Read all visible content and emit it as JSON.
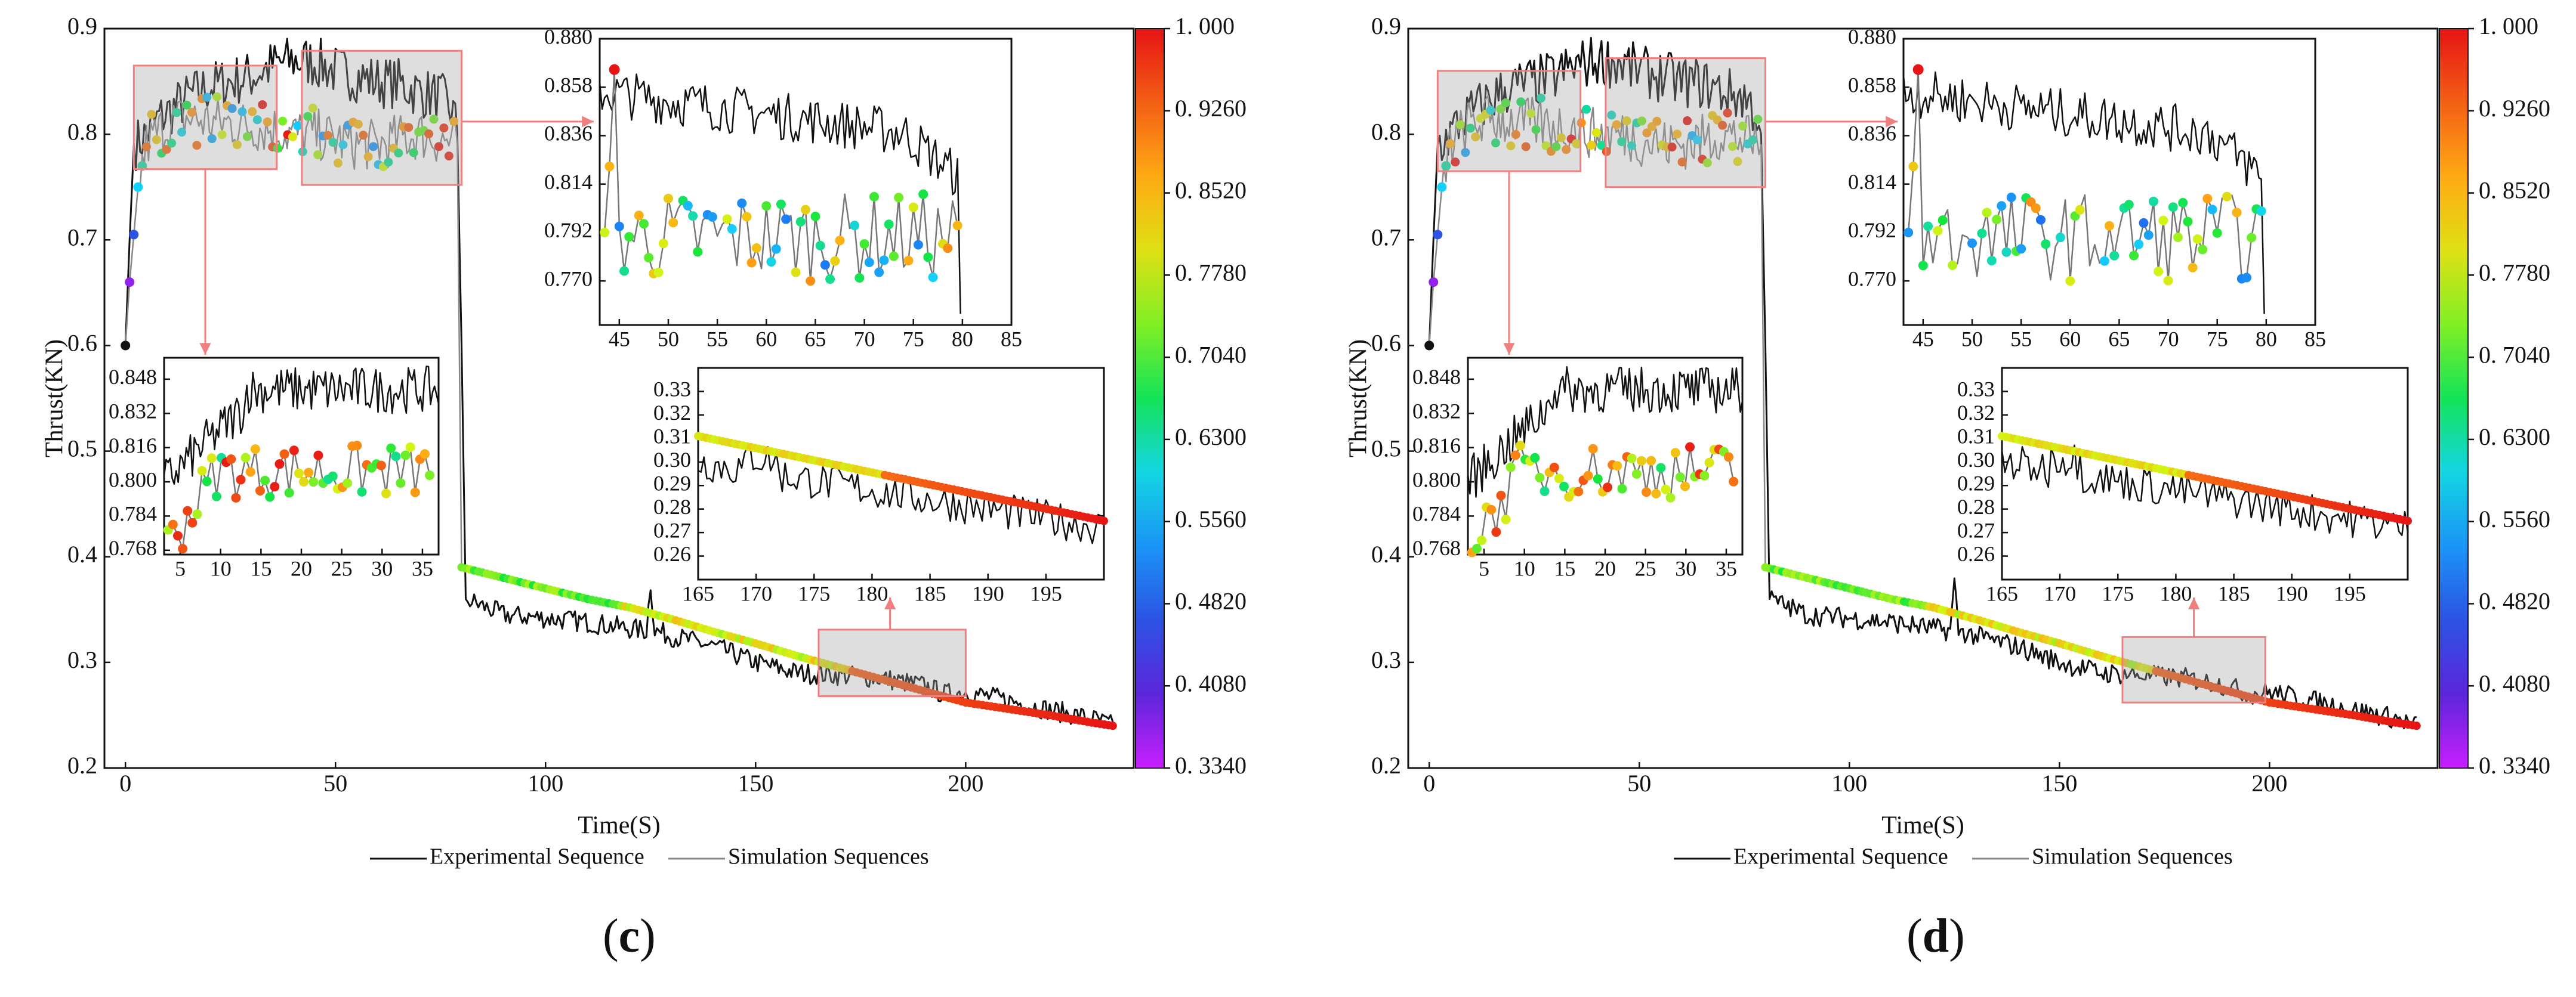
{
  "panels": [
    {
      "label": "c",
      "main": {
        "xlabel": "Time(S)",
        "ylabel": "Thrust(KN)",
        "xlim": [
          -5,
          240
        ],
        "ylim": [
          0.2,
          0.9
        ],
        "xticks": [
          "0",
          "50",
          "100",
          "150",
          "200"
        ],
        "yticks": [
          "0.2",
          "0.3",
          "0.4",
          "0.5",
          "0.6",
          "0.7",
          "0.8",
          "0.9"
        ]
      },
      "colorbar": {
        "ticks": [
          "1. 000",
          "0. 9260",
          "0. 8520",
          "0. 7780",
          "0. 7040",
          "0. 6300",
          "0. 5560",
          "0. 4820",
          "0. 4080",
          "0. 3340"
        ]
      },
      "inset_top_right": {
        "xlim": [
          43,
          85
        ],
        "ylim": [
          0.75,
          0.88
        ],
        "xticks": [
          "45",
          "50",
          "55",
          "60",
          "65",
          "70",
          "75",
          "80",
          "85"
        ],
        "yticks": [
          "0.880",
          "0.858",
          "0.836",
          "0.814",
          "0.792",
          "0.770"
        ]
      },
      "inset_left": {
        "xlim": [
          3,
          37
        ],
        "ylim": [
          0.766,
          0.858
        ],
        "xticks": [
          "5",
          "10",
          "15",
          "20",
          "25",
          "30",
          "35"
        ],
        "yticks": [
          "0.848",
          "0.832",
          "0.816",
          "0.800",
          "0.784",
          "0.768"
        ]
      },
      "inset_bottom_right": {
        "xlim": [
          165,
          200
        ],
        "ylim": [
          0.25,
          0.34
        ],
        "xticks": [
          "165",
          "170",
          "175",
          "180",
          "185",
          "190",
          "195"
        ],
        "yticks": [
          "0.33",
          "0.32",
          "0.31",
          "0.30",
          "0.29",
          "0.28",
          "0.27",
          "0.26"
        ]
      },
      "legend": {
        "entries": [
          "Experimental Sequence",
          "Simulation Sequences"
        ]
      }
    },
    {
      "label": "d",
      "main": {
        "xlabel": "Time(S)",
        "ylabel": "Thrust(KN)",
        "xlim": [
          -5,
          240
        ],
        "ylim": [
          0.2,
          0.9
        ],
        "xticks": [
          "0",
          "50",
          "100",
          "150",
          "200"
        ],
        "yticks": [
          "0.2",
          "0.3",
          "0.4",
          "0.5",
          "0.6",
          "0.7",
          "0.8",
          "0.9"
        ]
      },
      "colorbar": {
        "ticks": [
          "1. 000",
          "0. 9260",
          "0. 8520",
          "0. 7780",
          "0. 7040",
          "0. 6300",
          "0. 5560",
          "0. 4820",
          "0. 4080",
          "0. 3340"
        ]
      },
      "inset_top_right": {
        "xlim": [
          43,
          85
        ],
        "ylim": [
          0.75,
          0.88
        ],
        "xticks": [
          "45",
          "50",
          "55",
          "60",
          "65",
          "70",
          "75",
          "80",
          "85"
        ],
        "yticks": [
          "0.880",
          "0.858",
          "0.836",
          "0.814",
          "0.792",
          "0.770"
        ]
      },
      "inset_left": {
        "xlim": [
          3,
          37
        ],
        "ylim": [
          0.766,
          0.858
        ],
        "xticks": [
          "5",
          "10",
          "15",
          "20",
          "25",
          "30",
          "35"
        ],
        "yticks": [
          "0.848",
          "0.832",
          "0.816",
          "0.800",
          "0.784",
          "0.768"
        ]
      },
      "inset_bottom_right": {
        "xlim": [
          165,
          200
        ],
        "ylim": [
          0.25,
          0.34
        ],
        "xticks": [
          "165",
          "170",
          "175",
          "180",
          "185",
          "190",
          "195"
        ],
        "yticks": [
          "0.33",
          "0.32",
          "0.31",
          "0.30",
          "0.29",
          "0.28",
          "0.27",
          "0.26"
        ]
      },
      "legend": {
        "entries": [
          "Experimental Sequence",
          "Simulation Sequences"
        ]
      }
    }
  ],
  "chart_data": [
    {
      "type": "line",
      "panel": "c",
      "xlabel": "Time(S)",
      "ylabel": "Thrust(KN)",
      "xlim": [
        -5,
        240
      ],
      "ylim": [
        0.2,
        0.9
      ],
      "colorbar_range": [
        0.334,
        1.0
      ],
      "legend": "bottom-center",
      "series": [
        {
          "name": "Experimental Sequence",
          "color": "#111111",
          "x": [
            0,
            1,
            2,
            3,
            5,
            8,
            10,
            15,
            20,
            25,
            30,
            35,
            40,
            45,
            50,
            55,
            60,
            65,
            70,
            75,
            78,
            79,
            80,
            81,
            90,
            100,
            110,
            120,
            124,
            125,
            126,
            130,
            140,
            150,
            160,
            170,
            180,
            190,
            195,
            200,
            210,
            220,
            230,
            235
          ],
          "y": [
            0.6,
            0.7,
            0.79,
            0.792,
            0.8,
            0.815,
            0.82,
            0.835,
            0.845,
            0.85,
            0.855,
            0.865,
            0.87,
            0.868,
            0.86,
            0.855,
            0.85,
            0.848,
            0.84,
            0.835,
            0.82,
            0.8,
            0.6,
            0.36,
            0.345,
            0.342,
            0.338,
            0.332,
            0.33,
            0.375,
            0.33,
            0.325,
            0.315,
            0.3,
            0.29,
            0.288,
            0.285,
            0.278,
            0.27,
            0.272,
            0.264,
            0.255,
            0.247,
            0.24
          ]
        },
        {
          "name": "Simulation Sequences",
          "color": "#888888",
          "x": [
            0,
            1,
            2,
            3,
            5,
            10,
            15,
            20,
            25,
            30,
            35,
            40,
            45,
            50,
            55,
            60,
            65,
            70,
            75,
            79,
            80,
            90,
            100,
            110,
            120,
            130,
            140,
            150,
            160,
            170,
            180,
            190,
            200,
            210,
            220,
            230,
            235
          ],
          "y": [
            0.6,
            0.66,
            0.705,
            0.75,
            0.79,
            0.81,
            0.815,
            0.812,
            0.81,
            0.808,
            0.805,
            0.8,
            0.8,
            0.795,
            0.79,
            0.79,
            0.795,
            0.8,
            0.795,
            0.79,
            0.39,
            0.38,
            0.37,
            0.36,
            0.352,
            0.341,
            0.329,
            0.318,
            0.306,
            0.295,
            0.284,
            0.273,
            0.262,
            0.256,
            0.25,
            0.243,
            0.24
          ]
        }
      ]
    },
    {
      "type": "line",
      "panel": "d",
      "xlabel": "Time(S)",
      "ylabel": "Thrust(KN)",
      "xlim": [
        -5,
        240
      ],
      "ylim": [
        0.2,
        0.9
      ],
      "colorbar_range": [
        0.334,
        1.0
      ],
      "legend": "bottom-center",
      "series": [
        {
          "name": "Experimental Sequence",
          "color": "#111111",
          "x": [
            0,
            1,
            2,
            3,
            5,
            8,
            10,
            15,
            20,
            25,
            30,
            35,
            40,
            45,
            50,
            55,
            60,
            65,
            70,
            75,
            78,
            79,
            80,
            81,
            90,
            100,
            110,
            120,
            124,
            125,
            126,
            130,
            140,
            150,
            160,
            170,
            180,
            190,
            195,
            200,
            210,
            220,
            230,
            235
          ],
          "y": [
            0.6,
            0.7,
            0.79,
            0.792,
            0.8,
            0.815,
            0.82,
            0.835,
            0.845,
            0.85,
            0.855,
            0.865,
            0.87,
            0.868,
            0.86,
            0.855,
            0.85,
            0.848,
            0.84,
            0.835,
            0.82,
            0.8,
            0.6,
            0.36,
            0.345,
            0.342,
            0.338,
            0.332,
            0.33,
            0.375,
            0.33,
            0.325,
            0.315,
            0.3,
            0.29,
            0.288,
            0.285,
            0.278,
            0.27,
            0.272,
            0.264,
            0.255,
            0.247,
            0.24
          ]
        },
        {
          "name": "Simulation Sequences",
          "color": "#888888",
          "x": [
            0,
            1,
            2,
            3,
            5,
            10,
            15,
            20,
            25,
            30,
            35,
            40,
            45,
            50,
            55,
            60,
            65,
            70,
            75,
            79,
            80,
            90,
            100,
            110,
            120,
            130,
            140,
            150,
            160,
            170,
            180,
            190,
            200,
            210,
            220,
            230,
            235
          ],
          "y": [
            0.6,
            0.66,
            0.705,
            0.75,
            0.79,
            0.81,
            0.815,
            0.812,
            0.81,
            0.808,
            0.805,
            0.8,
            0.8,
            0.795,
            0.79,
            0.79,
            0.795,
            0.8,
            0.795,
            0.79,
            0.39,
            0.38,
            0.37,
            0.36,
            0.352,
            0.341,
            0.329,
            0.318,
            0.306,
            0.295,
            0.284,
            0.273,
            0.262,
            0.256,
            0.25,
            0.243,
            0.24
          ]
        }
      ]
    }
  ]
}
